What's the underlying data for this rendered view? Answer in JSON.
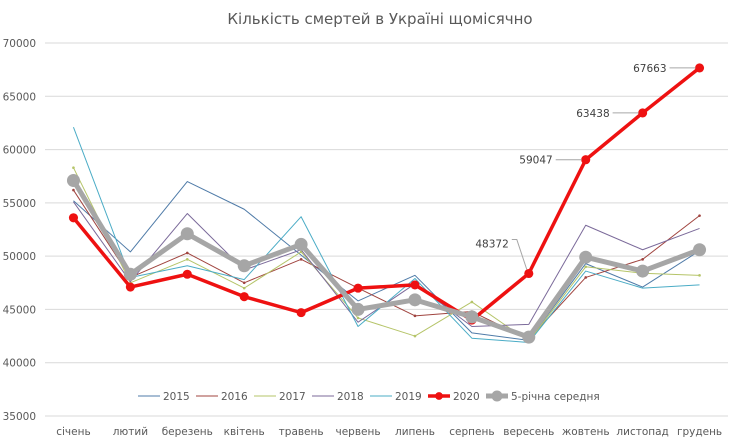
{
  "chart_data": {
    "type": "line",
    "title": "Кількість смертей в Україні щомісячно",
    "categories": [
      "січень",
      "лютий",
      "березень",
      "квітень",
      "травень",
      "червень",
      "липень",
      "серпень",
      "вересень",
      "жовтень",
      "листопад",
      "грудень"
    ],
    "ylim": [
      35000,
      70000
    ],
    "yticks": [
      35000,
      40000,
      45000,
      50000,
      55000,
      60000,
      65000,
      70000
    ],
    "grid": true,
    "legend_position": "bottom",
    "series": [
      {
        "name": "2015",
        "color": "#4f7ba8",
        "width": 1,
        "marker": false,
        "values": [
          55200,
          50400,
          57000,
          54400,
          50100,
          45800,
          48200,
          42800,
          42100,
          49300,
          47100,
          50500
        ]
      },
      {
        "name": "2016",
        "color": "#a0443f",
        "width": 1,
        "marker": true,
        "values": [
          56200,
          48000,
          50300,
          47500,
          49700,
          47000,
          44400,
          44800,
          42200,
          48000,
          49700,
          53800
        ]
      },
      {
        "name": "2017",
        "color": "#b5c468",
        "width": 1,
        "marker": true,
        "values": [
          58300,
          47500,
          49700,
          47000,
          50400,
          44200,
          42500,
          45700,
          42000,
          49000,
          48400,
          48200
        ]
      },
      {
        "name": "2018",
        "color": "#7b6a9a",
        "width": 1,
        "marker": false,
        "values": [
          55100,
          47600,
          54000,
          48700,
          50600,
          43800,
          47400,
          43400,
          43600,
          52900,
          50600,
          52600
        ]
      },
      {
        "name": "2019",
        "color": "#4bacc6",
        "width": 1,
        "marker": false,
        "values": [
          62100,
          48000,
          49100,
          47800,
          53700,
          43400,
          47900,
          42300,
          41900,
          48600,
          47000,
          47300
        ]
      },
      {
        "name": "2020",
        "color": "#ee1111",
        "width": 3.5,
        "marker": true,
        "values": [
          53600,
          47100,
          48300,
          46200,
          44700,
          47000,
          47300,
          44000,
          48372,
          59047,
          63438,
          67663
        ]
      },
      {
        "name": "5-річна середня",
        "color": "#a6a6a6",
        "width": 5,
        "marker": true,
        "values": [
          57100,
          48300,
          52100,
          49100,
          51100,
          45000,
          45900,
          44300,
          42400,
          49900,
          48600,
          50600
        ]
      }
    ],
    "data_labels": [
      {
        "series": "2020",
        "category": "вересень",
        "text": "48372"
      },
      {
        "series": "2020",
        "category": "жовтень",
        "text": "59047"
      },
      {
        "series": "2020",
        "category": "листопад",
        "text": "63438"
      },
      {
        "series": "2020",
        "category": "грудень",
        "text": "67663"
      }
    ]
  }
}
